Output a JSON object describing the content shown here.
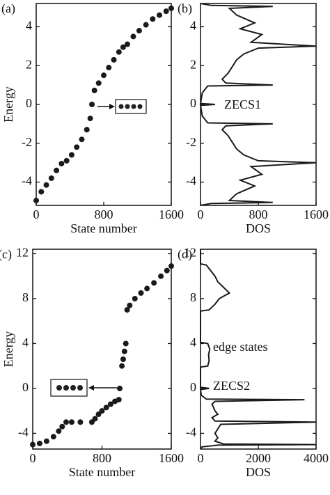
{
  "chart_data": [
    {
      "type": "scatter",
      "label": "(a)",
      "xlabel": "State number",
      "ylabel": "Energy",
      "color": "#1a1a1a",
      "x": [
        0,
        60,
        120,
        180,
        240,
        300,
        360,
        420,
        480,
        540,
        600,
        640,
        660,
        690,
        740,
        800,
        860,
        920,
        980,
        1030,
        1080,
        1150,
        1220,
        1300,
        1380,
        1460,
        1540,
        1600
      ],
      "values": [
        -4.95,
        -4.5,
        -4.15,
        -3.8,
        -3.4,
        -3.05,
        -2.9,
        -2.6,
        -2.2,
        -1.8,
        -1.3,
        -0.72,
        0,
        0.72,
        1.1,
        1.5,
        1.9,
        2.3,
        2.7,
        2.95,
        3.1,
        3.5,
        3.8,
        4.1,
        4.4,
        4.6,
        4.8,
        4.95
      ],
      "xlim": [
        0,
        1600
      ],
      "xticks": [
        0,
        800,
        1600
      ],
      "ylim": [
        -5.2,
        5.2
      ],
      "yticks": [
        -4,
        -2,
        0,
        2,
        4
      ]
    },
    {
      "type": "line",
      "label": "(b)",
      "xlabel": "DOS",
      "color": "#1a1a1a",
      "annotations": [
        "ZECS1"
      ],
      "x": [
        0,
        150,
        1000,
        400,
        500,
        750,
        550,
        850,
        700,
        1600,
        800,
        600,
        500,
        450,
        380,
        300,
        350,
        1000,
        100,
        25,
        0,
        200,
        0,
        25,
        100,
        1000,
        350,
        300,
        380,
        450,
        500,
        600,
        800,
        1600,
        700,
        850,
        550,
        750,
        500,
        400,
        1000,
        150,
        0
      ],
      "values": [
        -5.2,
        -5.1,
        -5.05,
        -4.95,
        -4.6,
        -4.2,
        -3.9,
        -3.6,
        -3.2,
        -3.0,
        -2.9,
        -2.6,
        -2.3,
        -2.0,
        -1.6,
        -1.3,
        -1.1,
        -1.0,
        -0.95,
        -0.6,
        -0.05,
        0,
        0.05,
        0.6,
        0.95,
        1.0,
        1.1,
        1.3,
        1.6,
        2.0,
        2.3,
        2.6,
        2.9,
        3.0,
        3.2,
        3.6,
        3.9,
        4.2,
        4.6,
        4.95,
        5.05,
        5.1,
        5.2
      ],
      "xlim": [
        0,
        1600
      ],
      "xticks": [
        0,
        800,
        1600
      ],
      "ylim": [
        -5.2,
        5.2
      ],
      "yticks": [
        -4,
        -2,
        0,
        2,
        4
      ]
    },
    {
      "type": "scatter",
      "label": "(c)",
      "xlabel": "State number",
      "ylabel": "Energy",
      "color": "#1a1a1a",
      "x": [
        0,
        80,
        160,
        240,
        300,
        340,
        386,
        450,
        550,
        683,
        720,
        760,
        800,
        850,
        900,
        950,
        995,
        1005,
        1030,
        1045,
        1060,
        1075,
        1090,
        1120,
        1180,
        1250,
        1320,
        1400,
        1480,
        1550,
        1600
      ],
      "values": [
        -5,
        -4.9,
        -4.7,
        -4.3,
        -3.8,
        -3.4,
        -3.0,
        -3.0,
        -3.0,
        -3.0,
        -2.7,
        -2.3,
        -2.0,
        -1.7,
        -1.4,
        -1.15,
        -1.0,
        0,
        2.0,
        2.6,
        3.3,
        4.0,
        7.0,
        7.4,
        8.0,
        8.5,
        8.9,
        9.4,
        10.0,
        10.5,
        10.9
      ],
      "xlim": [
        0,
        1600
      ],
      "xticks": [
        0,
        800,
        1600
      ],
      "ylim": [
        -5.4,
        12.4
      ],
      "yticks": [
        -4,
        0,
        4,
        8,
        12
      ]
    },
    {
      "type": "line",
      "label": "(d)",
      "xlabel": "DOS",
      "color": "#1a1a1a",
      "annotations": [
        "edge states",
        "ZECS2"
      ],
      "x": [
        0,
        60,
        600,
        4000,
        800,
        500,
        600,
        500,
        600,
        700,
        4000,
        500,
        400,
        600,
        500,
        450,
        400,
        500,
        3600,
        200,
        30,
        0,
        300,
        0,
        0,
        250,
        300,
        280,
        320,
        250,
        0,
        0,
        300,
        500,
        650,
        1000,
        800,
        600,
        500,
        350,
        200,
        0,
        0
      ],
      "values": [
        -5.4,
        -5.2,
        -5.05,
        -5.0,
        -4.95,
        -4.7,
        -4.4,
        -4.0,
        -3.6,
        -3.2,
        -3.0,
        -2.9,
        -2.6,
        -2.3,
        -2.0,
        -1.7,
        -1.4,
        -1.15,
        -1.0,
        -0.95,
        -0.6,
        -0.1,
        0,
        0.1,
        1.9,
        2.0,
        2.5,
        3.0,
        3.5,
        4.0,
        4.1,
        6.9,
        7.0,
        7.5,
        8.0,
        8.5,
        9.0,
        9.5,
        10.0,
        10.5,
        11.0,
        11.1,
        12.4
      ],
      "xlim": [
        0,
        4000
      ],
      "xticks": [
        0,
        2000,
        4000
      ],
      "ylim": [
        -5.4,
        12.4
      ],
      "yticks": [
        -4,
        0,
        4,
        8,
        12
      ]
    }
  ]
}
